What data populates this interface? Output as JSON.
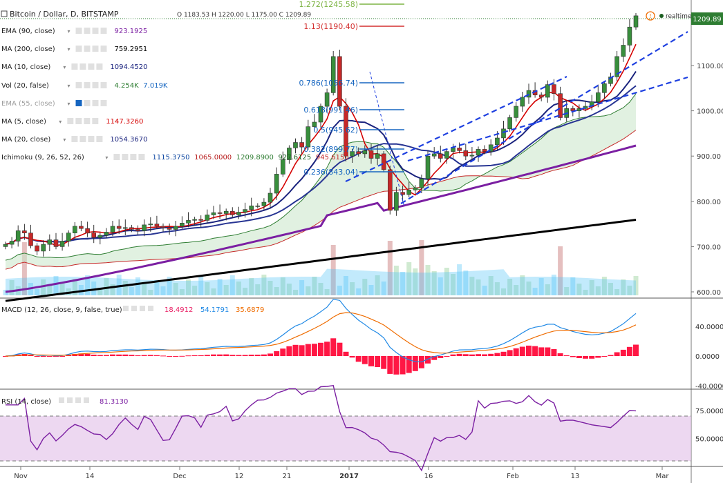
{
  "header": {
    "symbol": "Bitcoin / Dollar, D, BITSTAMP",
    "ohlc": "O 1183.53  H 1220.00  L 1175.00  C 1209.89",
    "realtime": "realtime",
    "last_price": "1209.89"
  },
  "indicators": [
    {
      "label": "EMA (90, close)",
      "value": "923.1925",
      "color": "#7b1fa2"
    },
    {
      "label": "MA (200, close)",
      "value": "759.2951",
      "color": "#000000"
    },
    {
      "label": "MA (10, close)",
      "value": "1094.4520",
      "color": "#1a237e"
    },
    {
      "label": "Vol (20, false)",
      "value": "4.254K",
      "value2": "7.019K",
      "color": "#2e7d32",
      "color2": "#1565c0"
    },
    {
      "label": "EMA (55, close)",
      "value": "",
      "color": "#9e9e9e"
    },
    {
      "label": "MA (5, close)",
      "value": "1147.3260",
      "color": "#d50000"
    },
    {
      "label": "MA (20, close)",
      "value": "1054.3670",
      "color": "#1a237e"
    },
    {
      "label": "Ichimoku (9, 26, 52, 26)",
      "values": [
        "1115.3750",
        "1065.0000",
        "1209.8900",
        "927.6125",
        "945.6150"
      ],
      "colors": [
        "#0d47a1",
        "#b71c1c",
        "#2e7d32",
        "#1b5e20",
        "#c62828"
      ]
    }
  ],
  "fib_levels": [
    {
      "label": "1.272(1245.58)",
      "color": "#7cb342"
    },
    {
      "label": "1.13(1190.40)",
      "color": "#d32f2f"
    },
    {
      "label": "0.786(1056.74)",
      "color": "#1565c0"
    },
    {
      "label": "0.618(991.46)",
      "color": "#1565c0"
    },
    {
      "label": "0.5(945.62)",
      "color": "#1565c0"
    },
    {
      "label": "0.382(899.77)",
      "color": "#1565c0"
    },
    {
      "label": "0.236(843.04)",
      "color": "#1565c0"
    }
  ],
  "macd": {
    "label": "MACD (12, 26, close, 9, false, true)",
    "values": [
      "18.4912",
      "54.1791",
      "35.6879"
    ],
    "colors": [
      "#e91e63",
      "#1e88e5",
      "#ef6c00"
    ]
  },
  "rsi": {
    "label": "RSI (14, close)",
    "value": "81.3130",
    "color": "#7b1fa2"
  },
  "price_axis": [
    "1100.00",
    "1000.00",
    "900.00",
    "800.00",
    "700.00",
    "600.00"
  ],
  "macd_axis": [
    "40.0000",
    "0.0000",
    "-40.0000"
  ],
  "rsi_axis": [
    "75.0000",
    "50.0000"
  ],
  "x_axis": [
    "Nov",
    "14",
    "Dec",
    "12",
    "21",
    "2017",
    "16",
    "Feb",
    "13",
    "Mar"
  ],
  "chart_data": {
    "type": "candlestick",
    "title": "Bitcoin / Dollar, D, BITSTAMP",
    "ylim": [
      550,
      1260
    ],
    "closes": [
      705,
      712,
      735,
      730,
      702,
      690,
      705,
      715,
      700,
      712,
      730,
      745,
      740,
      730,
      720,
      725,
      732,
      745,
      740,
      742,
      738,
      735,
      748,
      750,
      745,
      742,
      738,
      745,
      752,
      758,
      760,
      758,
      770,
      775,
      773,
      778,
      770,
      776,
      782,
      790,
      790,
      798,
      818,
      860,
      892,
      918,
      930,
      920,
      965,
      975,
      1010,
      1040,
      1120,
      1010,
      900,
      910,
      905,
      912,
      895,
      905,
      870,
      780,
      820,
      815,
      825,
      830,
      850,
      900,
      905,
      895,
      910,
      918,
      912,
      900,
      902,
      915,
      910,
      925,
      940,
      960,
      985,
      1010,
      1030,
      1045,
      1035,
      1030,
      1058,
      1038,
      985,
      1005,
      1000,
      1005,
      1010,
      1020,
      1040,
      1060,
      1075,
      1120,
      1145,
      1185,
      1209.89
    ],
    "ema90_last": 923.1925,
    "ma200_last": 759.2951,
    "ma10_last": 1094.452,
    "ma5_last": 1147.326,
    "ma20_last": 1054.367,
    "macd_last": [
      18.4912,
      54.1791,
      35.6879
    ],
    "rsi_last": 81.313
  }
}
